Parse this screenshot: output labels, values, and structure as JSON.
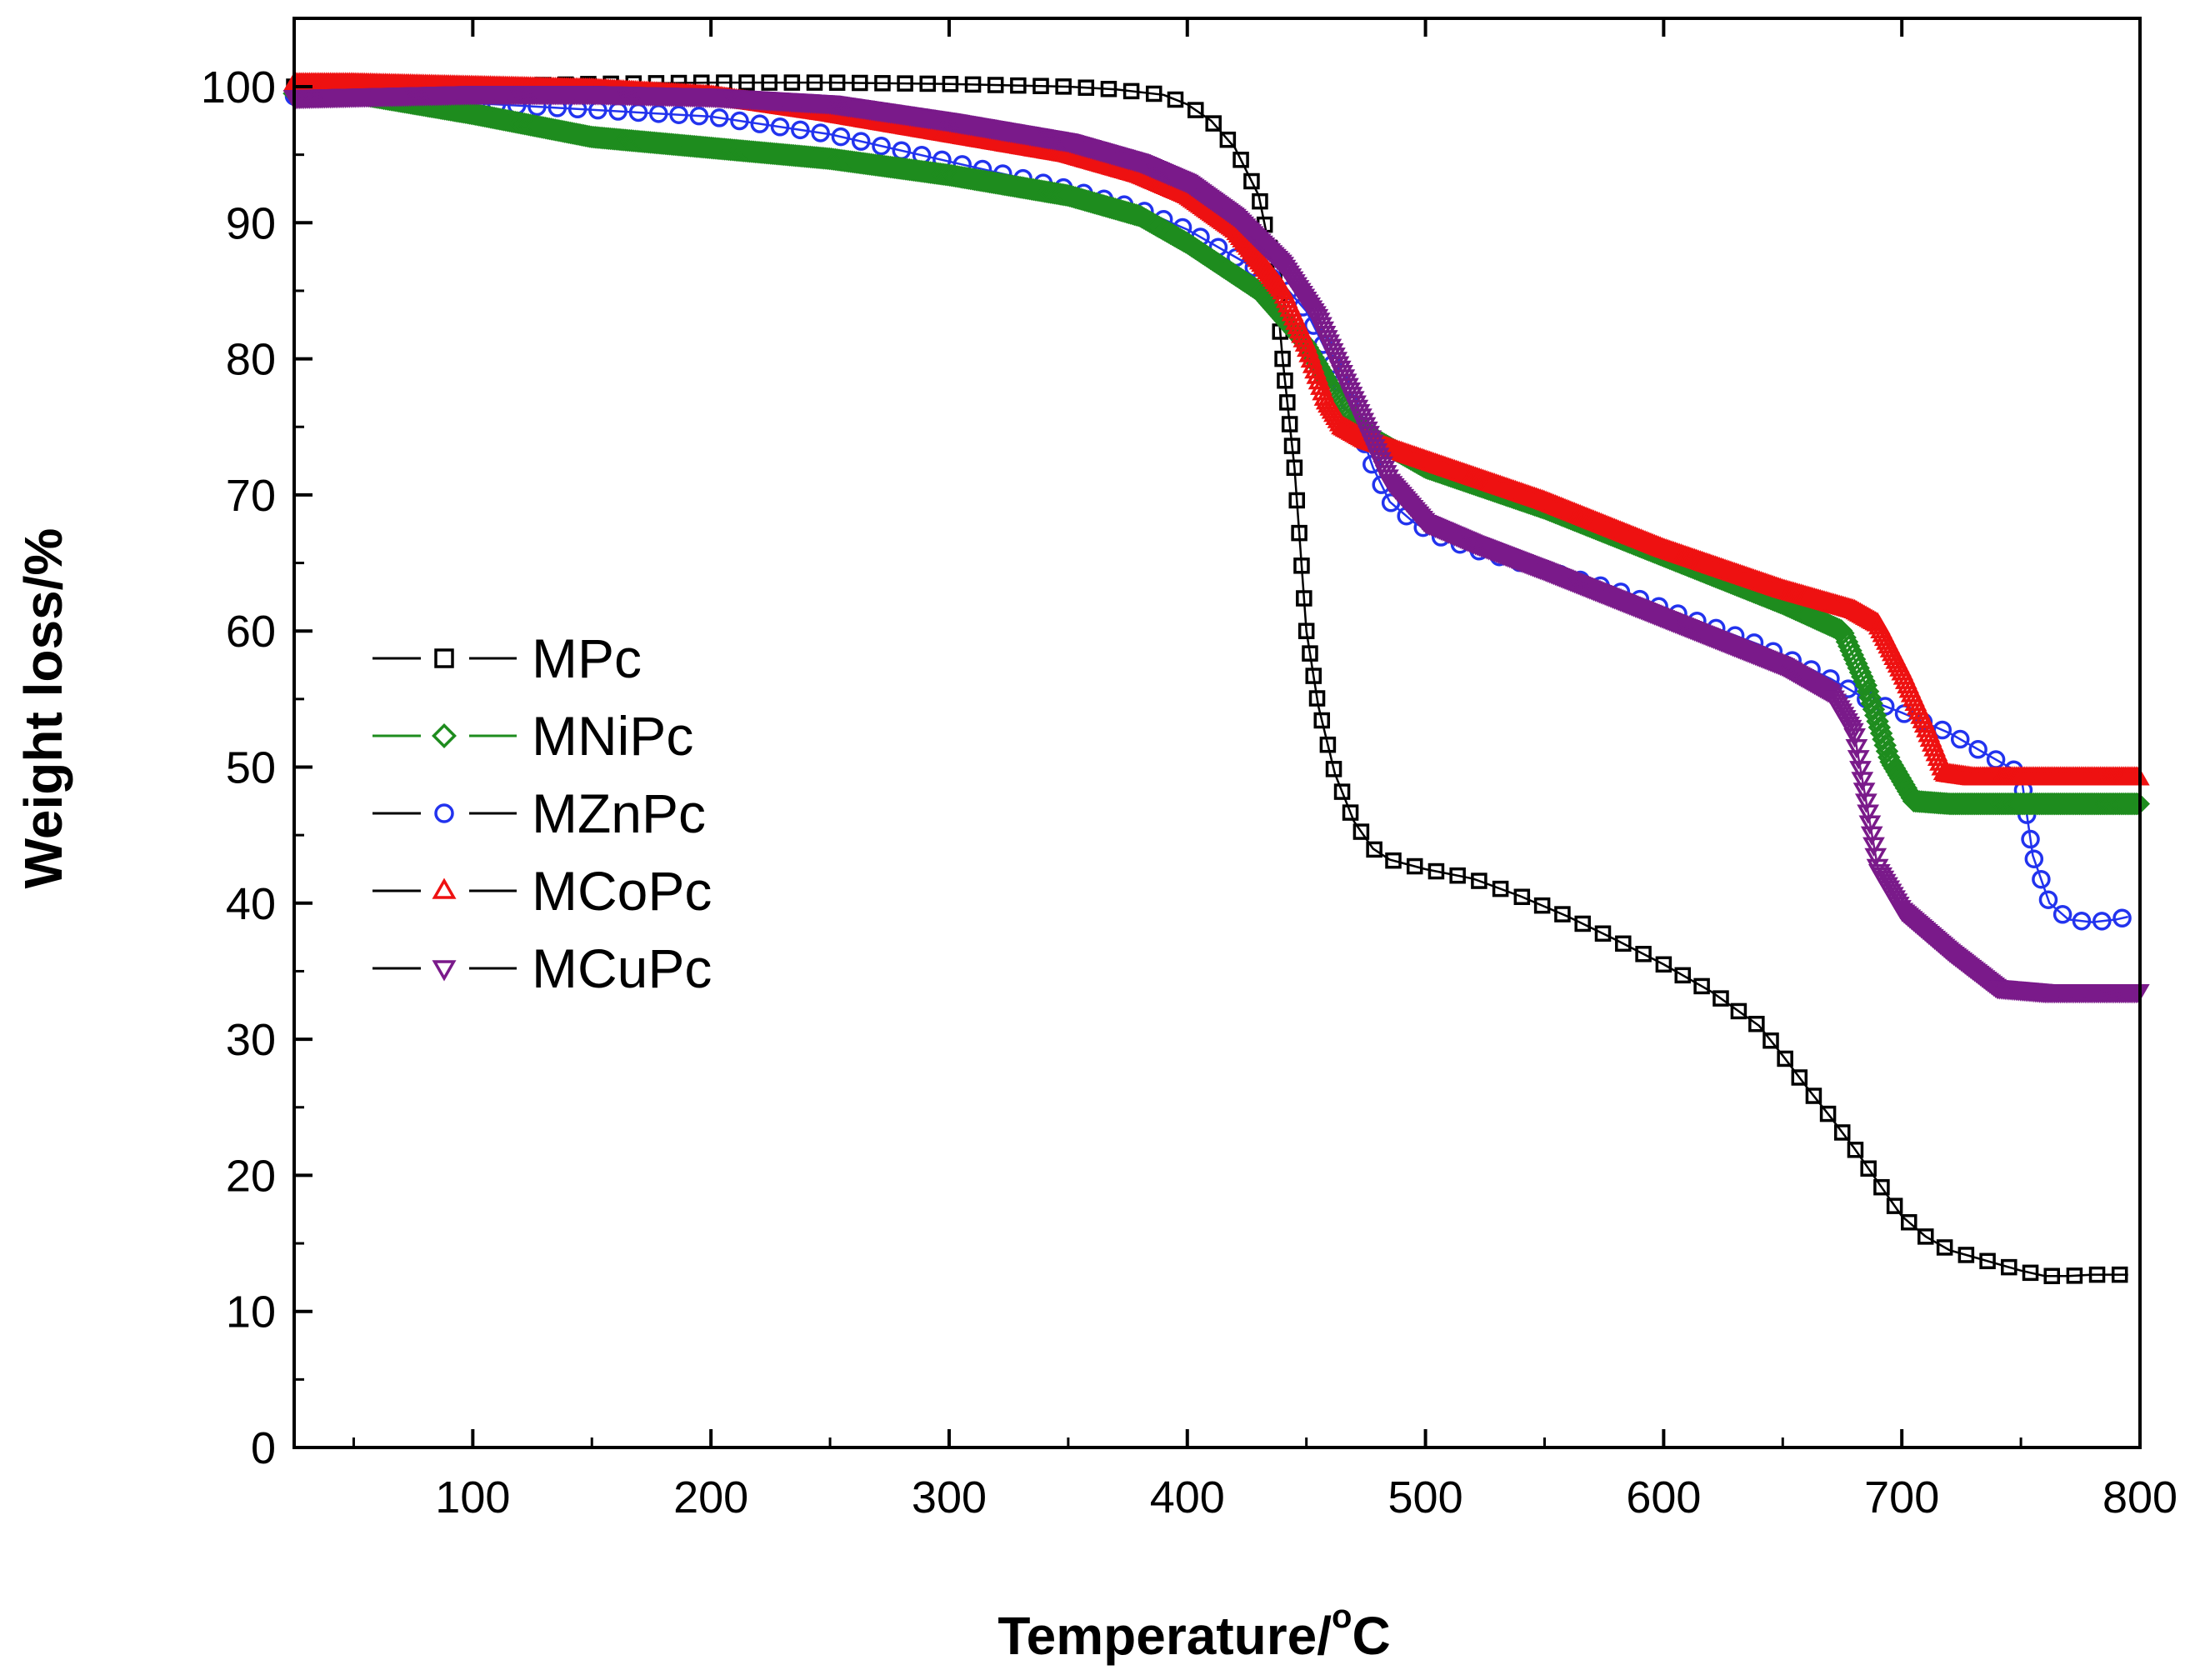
{
  "chart_data": {
    "type": "scatter",
    "title": "",
    "xlabel": "Temperature/",
    "xlabel_superscript": "o",
    "xlabel_unit": "C",
    "ylabel": "Weight loss/%",
    "xlim": [
      25,
      800
    ],
    "ylim": [
      0,
      104
    ],
    "xticks": [
      100,
      200,
      300,
      400,
      500,
      600,
      700,
      800
    ],
    "yticks": [
      0,
      10,
      20,
      30,
      40,
      50,
      60,
      70,
      80,
      90,
      100
    ],
    "grid": false,
    "legend_position": "left-middle",
    "series": [
      {
        "name": "MPc",
        "marker": "square",
        "color": "#000000",
        "x": [
          25,
          50,
          100,
          150,
          200,
          250,
          300,
          350,
          370,
          390,
          400,
          410,
          420,
          430,
          437,
          440,
          445,
          450,
          455,
          462,
          470,
          478,
          485,
          500,
          520,
          540,
          560,
          580,
          600,
          620,
          640,
          650,
          660,
          670,
          680,
          690,
          700,
          710,
          720,
          730,
          740,
          750,
          760,
          770,
          780,
          795
        ],
        "y": [
          100,
          100,
          100,
          100.2,
          100.3,
          100.3,
          100.2,
          100,
          99.8,
          99.4,
          98.7,
          97.5,
          95.5,
          92,
          86,
          80,
          72,
          60,
          54.5,
          49.5,
          46,
          44,
          43.2,
          42.5,
          41.8,
          40.5,
          39,
          37.3,
          35.5,
          33.5,
          31,
          28.8,
          26.5,
          24.3,
          22,
          19.5,
          17,
          15.5,
          14.5,
          14,
          13.5,
          13,
          12.6,
          12.6,
          12.7,
          12.7
        ]
      },
      {
        "name": "MNiPc",
        "marker": "diamond",
        "color": "#1e8c1e",
        "x": [
          25,
          50,
          100,
          150,
          200,
          250,
          300,
          350,
          380,
          400,
          430,
          450,
          460,
          470,
          480,
          500,
          550,
          600,
          650,
          675,
          685,
          695,
          705,
          720,
          760,
          800
        ],
        "y": [
          99.5,
          99.5,
          98,
          96.3,
          95.5,
          94.7,
          93.5,
          92,
          90.5,
          88.5,
          85,
          81,
          78,
          75.5,
          74,
          72,
          69,
          65.5,
          62,
          60,
          56,
          50.5,
          47.5,
          47.3,
          47.3,
          47.3
        ]
      },
      {
        "name": "MZnPc",
        "marker": "circle",
        "color": "#2233ee",
        "x": [
          25,
          50,
          100,
          150,
          200,
          250,
          300,
          350,
          380,
          400,
          420,
          440,
          450,
          460,
          470,
          478,
          485,
          495,
          505,
          520,
          550,
          580,
          610,
          640,
          670,
          685,
          700,
          720,
          740,
          750,
          755,
          762,
          770,
          780,
          790,
          795
        ],
        "y": [
          99.3,
          99.3,
          98.8,
          98.3,
          97.8,
          96.5,
          94.5,
          92.5,
          91,
          89.5,
          87.5,
          85.5,
          83.5,
          80,
          76,
          72,
          69.5,
          68,
          67,
          66,
          64.5,
          63,
          61,
          59,
          56.5,
          55,
          54,
          52.5,
          50.5,
          49.5,
          43.5,
          40,
          38.8,
          38.6,
          38.8,
          39
        ]
      },
      {
        "name": "MCoPc",
        "marker": "triangle-up",
        "color": "#ee1111",
        "x": [
          25,
          50,
          100,
          150,
          200,
          250,
          300,
          350,
          380,
          400,
          420,
          440,
          450,
          458,
          465,
          475,
          500,
          550,
          600,
          650,
          680,
          690,
          700,
          710,
          718,
          730,
          760,
          800
        ],
        "y": [
          100.2,
          100.2,
          100,
          99.8,
          99.3,
          98,
          96.5,
          95,
          93.5,
          92,
          89.5,
          85,
          81,
          77,
          75,
          74,
          72.5,
          69.5,
          66,
          63,
          61.5,
          60.5,
          57,
          53,
          49.5,
          49.2,
          49.2,
          49.2
        ]
      },
      {
        "name": "MCuPc",
        "marker": "triangle-down",
        "color": "#7a1a8a",
        "x": [
          25,
          50,
          100,
          150,
          200,
          250,
          300,
          350,
          380,
          400,
          420,
          440,
          455,
          465,
          475,
          485,
          500,
          520,
          550,
          600,
          650,
          670,
          680,
          685,
          690,
          700,
          720,
          740,
          760,
          800
        ],
        "y": [
          99.2,
          99.3,
          99.5,
          99.5,
          99.3,
          98.8,
          97.5,
          96,
          94.5,
          93,
          90.5,
          87,
          83,
          79,
          75,
          71,
          68,
          66.5,
          64.5,
          61,
          57.5,
          55.5,
          52.5,
          47.5,
          42.5,
          39.5,
          36.5,
          33.8,
          33.5,
          33.5
        ]
      }
    ]
  }
}
